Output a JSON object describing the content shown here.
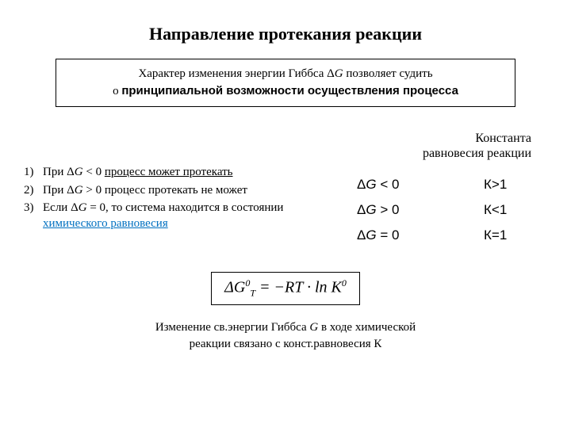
{
  "title": "Направление протекания реакции",
  "box": {
    "line1_pre": "Характер изменения энергии Гиббса Δ",
    "line1_g": "G",
    "line1_post": " позволяет судить",
    "line2_pre": "о ",
    "line2_bold": "принципиальной возможности осуществления процесса"
  },
  "konst_label_l1": "Константа",
  "konst_label_l2": "равновесия реакции",
  "list": {
    "n1": "1)",
    "n2": "2)",
    "n3": "3)",
    "i1_pre": "При Δ",
    "i1_g": "G",
    "i1_lt": " < 0 ",
    "i1_under": "процесс может протекать",
    "i2_pre": "При Δ",
    "i2_g": "G",
    "i2_rest": " > 0 процесс протекать не может",
    "i3_pre": "Если Δ",
    "i3_g": "G",
    "i3_mid": " = 0, то система находится в состоянии ",
    "i3_link": "химического равновесия"
  },
  "table": {
    "r1c1_pre": "Δ",
    "r1c1_g": "G",
    "r1c1_post": " < 0",
    "r1c2": "К>1",
    "r2c1_pre": "Δ",
    "r2c1_g": "G",
    "r2c1_post": " > 0",
    "r2c2": "К<1",
    "r3c1_pre": "Δ",
    "r3c1_g": "G",
    "r3c1_post": " = 0",
    "r3c2": "К=1"
  },
  "formula": {
    "delta": "Δ",
    "G": "G",
    "sub": "T",
    "sup": "0",
    "eq": " = −",
    "RT": "RT",
    "dot": " · ln ",
    "K": "K",
    "ksup": "0"
  },
  "bottom": {
    "l1_pre": "Изменение св.энергии Гиббса ",
    "l1_g": "G",
    "l1_post": " в ходе химической",
    "l2": "реакции связано с конст.равновесия К"
  },
  "colors": {
    "text": "#000000",
    "link": "#0070c0",
    "bg": "#ffffff",
    "border": "#000000"
  }
}
